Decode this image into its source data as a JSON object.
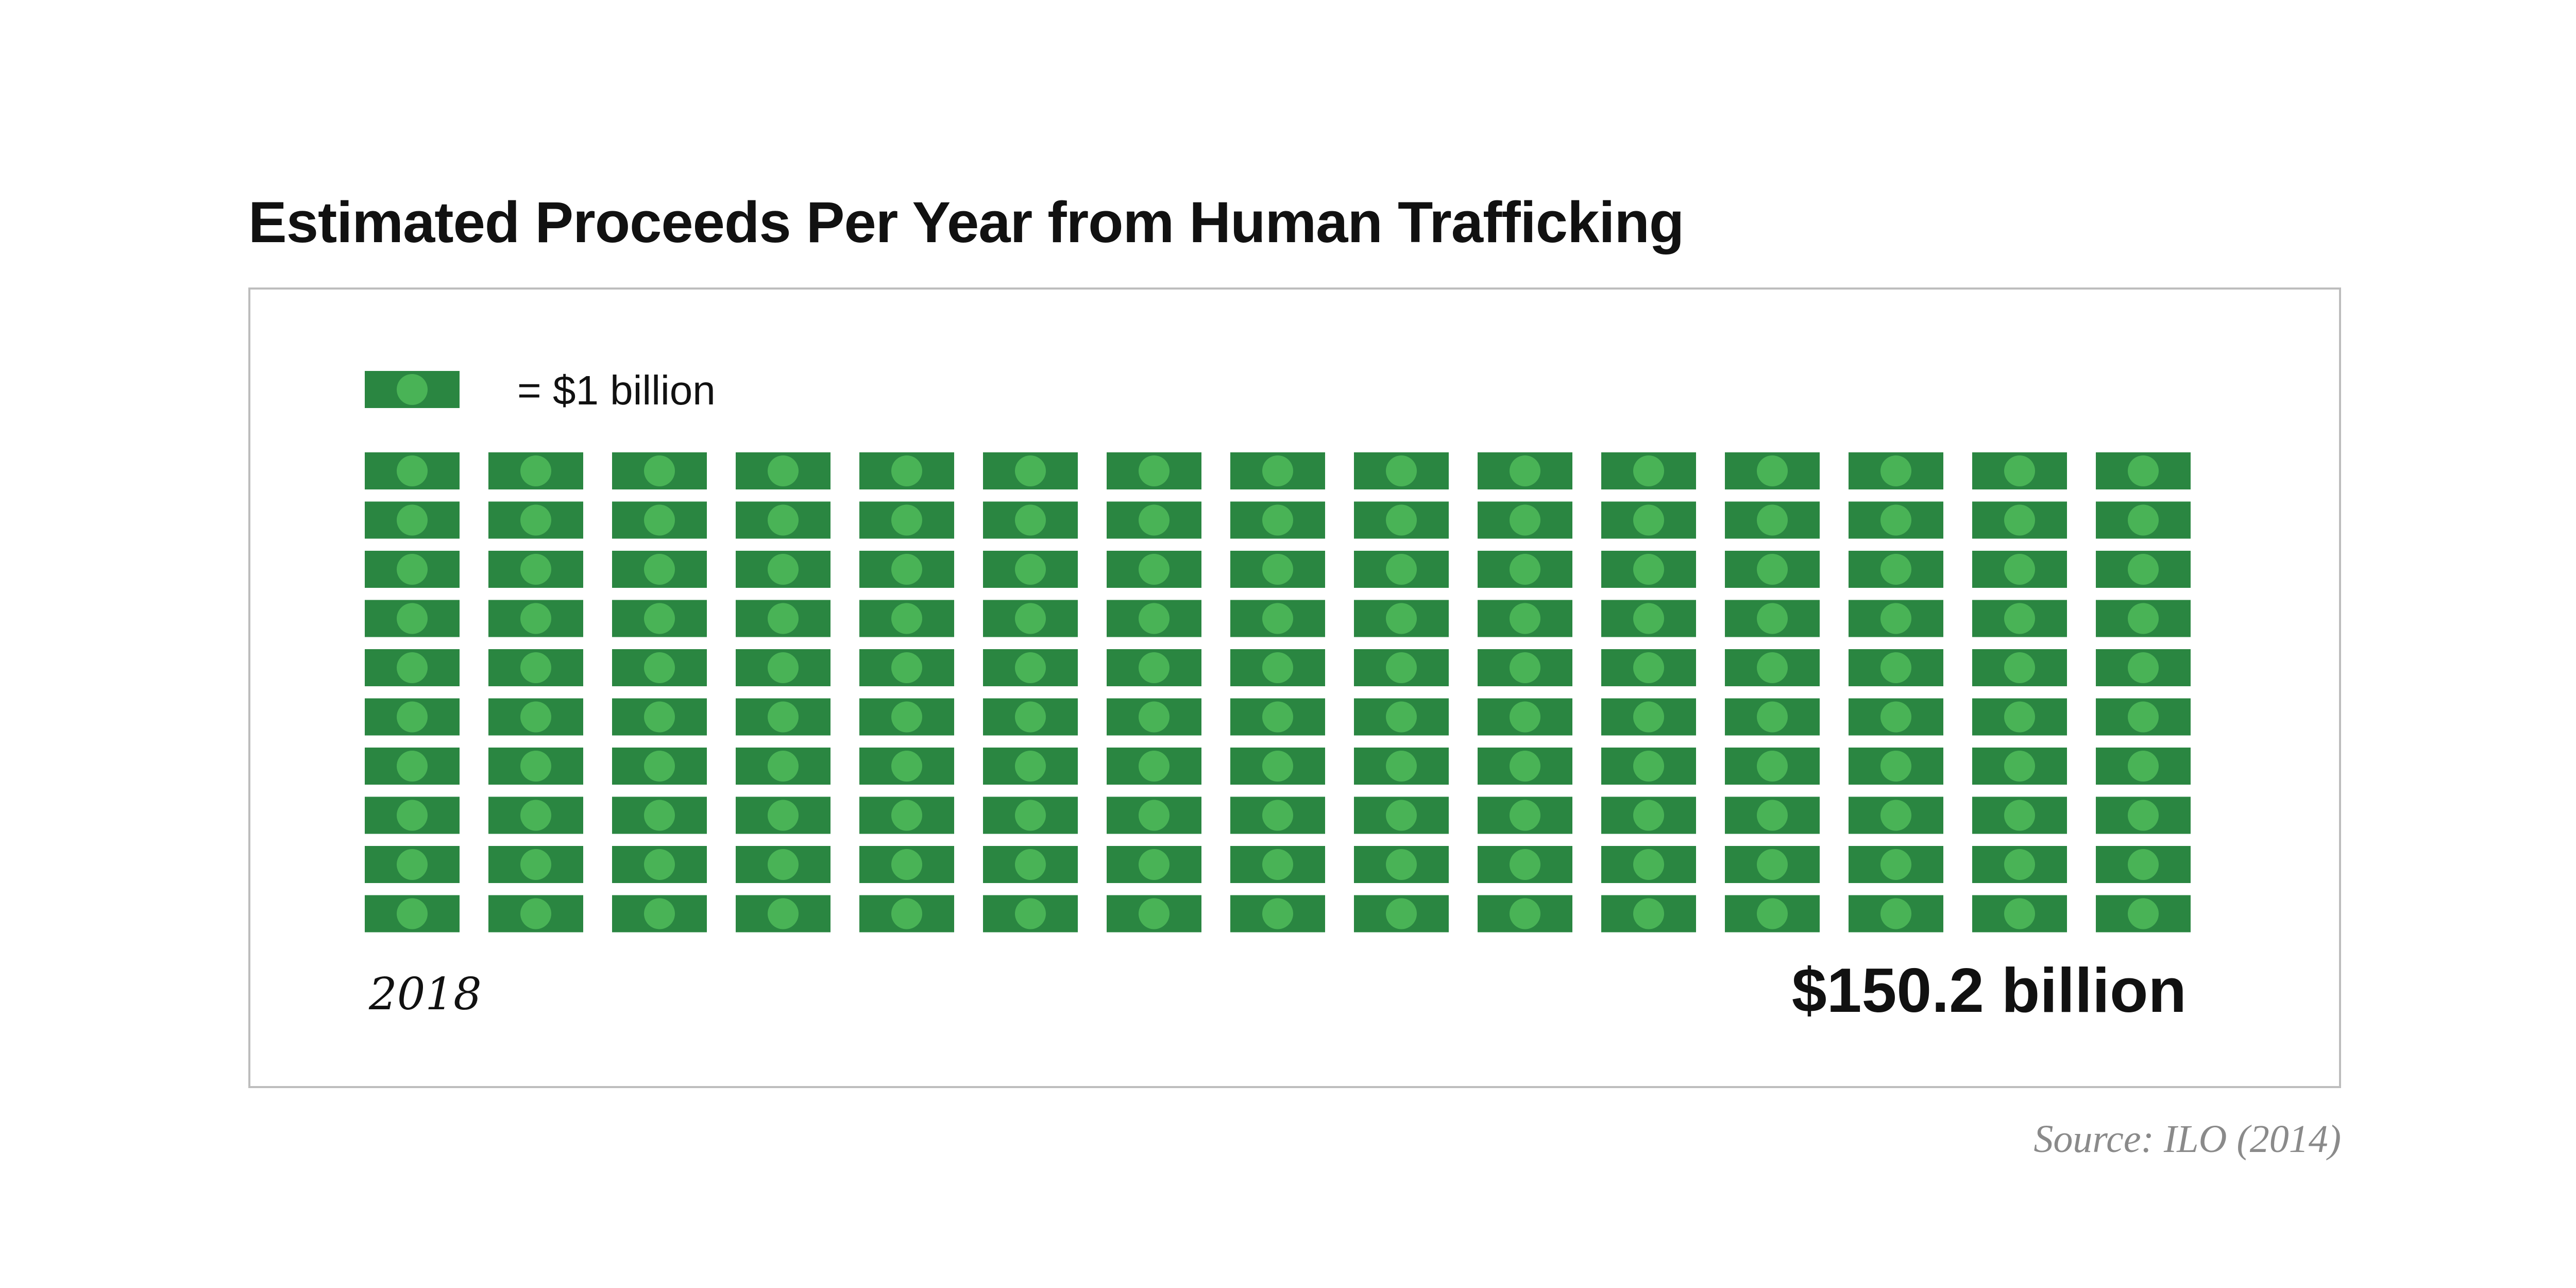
{
  "title": "Estimated Proceeds Per Year from Human Trafficking",
  "legend": {
    "label": "= $1 billion",
    "unit_value": 1,
    "unit": "billion"
  },
  "year": "2018",
  "total_text": "$150.2 billion",
  "source": "Source: ILO (2014)",
  "colors": {
    "bill_dark": "#2a8641",
    "bill_light": "#49b356",
    "frame_border": "#bdbdbd",
    "source_text": "#8a8a8a"
  },
  "chart_data": {
    "type": "pictogram",
    "title": "Estimated Proceeds Per Year from Human Trafficking",
    "unit_label": "= $1 billion",
    "unit_value": 1,
    "category": "2018",
    "value": 150.2,
    "value_label": "$150.2 billion",
    "icons_shown": 150,
    "columns": 15,
    "rows": 10
  }
}
